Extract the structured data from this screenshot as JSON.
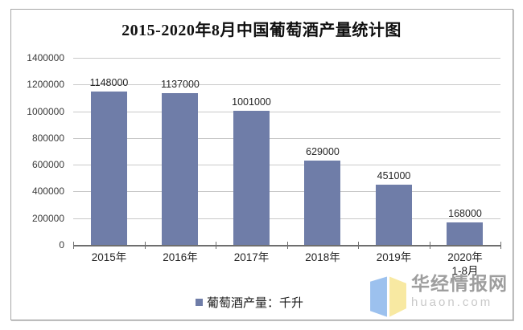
{
  "page": {
    "title": "2015-2020年8月中国葡萄酒产量统计图"
  },
  "chart_data": {
    "type": "bar",
    "title": "2015-2020年8月中国葡萄酒产量统计图",
    "categories": [
      "2015年",
      "2016年",
      "2017年",
      "2018年",
      "2019年",
      "2020年\n1-8月"
    ],
    "values": [
      1148000,
      1137000,
      1001000,
      629000,
      451000,
      168000
    ],
    "data_labels": [
      "1148000",
      "1137000",
      "1001000",
      "629000",
      "451000",
      "168000"
    ],
    "series_name": "葡萄酒产量",
    "unit": "千升",
    "ylim": [
      0,
      1400000
    ],
    "ytick_interval": 200000,
    "ytick_labels": [
      "1400000",
      "1200000",
      "1000000",
      "800000",
      "600000",
      "400000",
      "200000",
      "0"
    ],
    "grid": true,
    "legend_position": "bottom",
    "colors": {
      "bar": "#6f7da8",
      "gridline": "#c9c9c9",
      "axis": "#6e6e6e",
      "text": "#262626"
    }
  },
  "legend": {
    "label": "葡萄酒产量：千升"
  },
  "watermark": {
    "site_name": "华经情报网",
    "site_url": "huaon.com",
    "icon": "open-book-flag-icon",
    "colors": {
      "icon_blue": "#9cc1ee",
      "icon_yellow": "#f8e9a2",
      "name_text": "#9e9e9e",
      "url_text": "#c9c9c9"
    }
  }
}
